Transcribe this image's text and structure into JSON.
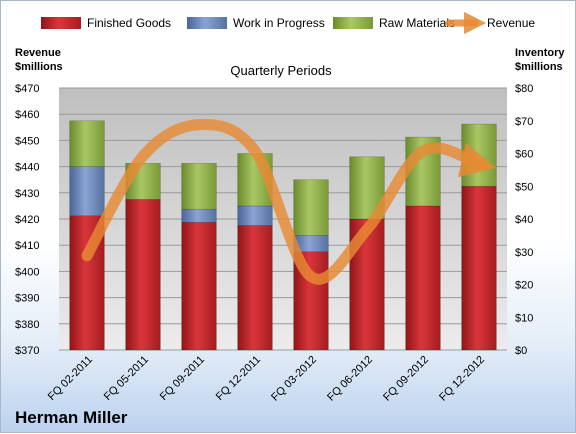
{
  "chart_data": {
    "type": "bar",
    "stacked": true,
    "subtitle": "Quarterly Periods",
    "footer_label": "Herman Miller",
    "left_axis": {
      "title_line1": "Revenue",
      "title_line2": "$millions",
      "range": [
        370,
        470
      ],
      "step": 10,
      "tick_format": "$"
    },
    "right_axis": {
      "title_line1": "Inventory",
      "title_line2": "$millions",
      "range": [
        0,
        80
      ],
      "step": 10,
      "tick_format": "$"
    },
    "categories": [
      "FQ 02-2011",
      "FQ 05-2011",
      "FQ 09-2011",
      "FQ 12-2011",
      "FQ 03-2012",
      "FQ 06-2012",
      "FQ 09-2012",
      "FQ 12-2012"
    ],
    "series": [
      {
        "name": "Finished Goods",
        "axis": "right",
        "color": "#c0262b",
        "values": [
          41,
          46,
          39,
          38,
          30,
          40,
          44,
          50
        ]
      },
      {
        "name": "Work in Progress",
        "axis": "right",
        "color": "#6a86bc",
        "values": [
          15,
          0,
          4,
          6,
          5,
          0,
          0,
          0
        ]
      },
      {
        "name": "Raw Materials",
        "axis": "right",
        "color": "#8daf4a",
        "values": [
          14,
          11,
          14,
          16,
          17,
          19,
          21,
          19
        ]
      },
      {
        "name": "Revenue",
        "axis": "left",
        "type": "line",
        "color": "#e88a33",
        "values": [
          406,
          444,
          456,
          446,
          398,
          416,
          446,
          441
        ]
      }
    ],
    "grid": true,
    "legend_position": "top"
  }
}
